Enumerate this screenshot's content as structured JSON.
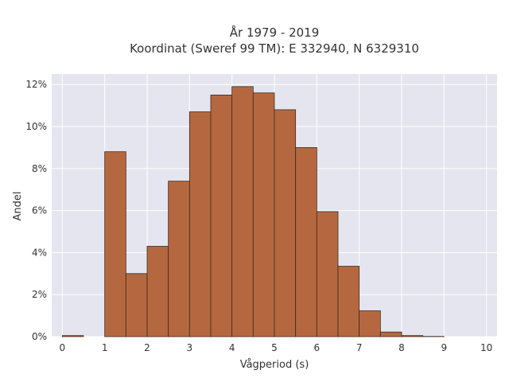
{
  "chart_data": {
    "type": "bar",
    "title_lines": [
      "År 1979 - 2019",
      "Koordinat (Sweref 99 TM): E 332940, N 6329310"
    ],
    "xlabel": "Vågperiod (s)",
    "ylabel": "Andel",
    "xlim": [
      -0.25,
      10.25
    ],
    "ylim": [
      0,
      0.125
    ],
    "x_ticks": [
      0,
      1,
      2,
      3,
      4,
      5,
      6,
      7,
      8,
      9,
      10
    ],
    "x_tick_labels": [
      "0",
      "1",
      "2",
      "3",
      "4",
      "5",
      "6",
      "7",
      "8",
      "9",
      "10"
    ],
    "y_ticks": [
      0,
      0.02,
      0.04,
      0.06,
      0.08,
      0.1,
      0.12
    ],
    "y_tick_labels": [
      "0%",
      "2%",
      "4%",
      "6%",
      "8%",
      "10%",
      "12%"
    ],
    "bins": [
      {
        "x0": 0.0,
        "x1": 0.5,
        "value": 0.0005
      },
      {
        "x0": 0.5,
        "x1": 1.0,
        "value": 0.0
      },
      {
        "x0": 1.0,
        "x1": 1.5,
        "value": 0.088
      },
      {
        "x0": 1.5,
        "x1": 2.0,
        "value": 0.03
      },
      {
        "x0": 2.0,
        "x1": 2.5,
        "value": 0.043
      },
      {
        "x0": 2.5,
        "x1": 3.0,
        "value": 0.074
      },
      {
        "x0": 3.0,
        "x1": 3.5,
        "value": 0.107
      },
      {
        "x0": 3.5,
        "x1": 4.0,
        "value": 0.115
      },
      {
        "x0": 4.0,
        "x1": 4.5,
        "value": 0.119
      },
      {
        "x0": 4.5,
        "x1": 5.0,
        "value": 0.116
      },
      {
        "x0": 5.0,
        "x1": 5.5,
        "value": 0.108
      },
      {
        "x0": 5.5,
        "x1": 6.0,
        "value": 0.09
      },
      {
        "x0": 6.0,
        "x1": 6.5,
        "value": 0.0595
      },
      {
        "x0": 6.5,
        "x1": 7.0,
        "value": 0.0335
      },
      {
        "x0": 7.0,
        "x1": 7.5,
        "value": 0.0123
      },
      {
        "x0": 7.5,
        "x1": 8.0,
        "value": 0.0022
      },
      {
        "x0": 8.0,
        "x1": 8.5,
        "value": 0.0005
      },
      {
        "x0": 8.5,
        "x1": 9.0,
        "value": 0.0001
      }
    ],
    "grid": true,
    "colors": {
      "bar_fill": "#b5683f",
      "bar_edge": "#3d2a1e",
      "plot_background": "#e5e5ef",
      "grid": "#ffffff"
    }
  }
}
